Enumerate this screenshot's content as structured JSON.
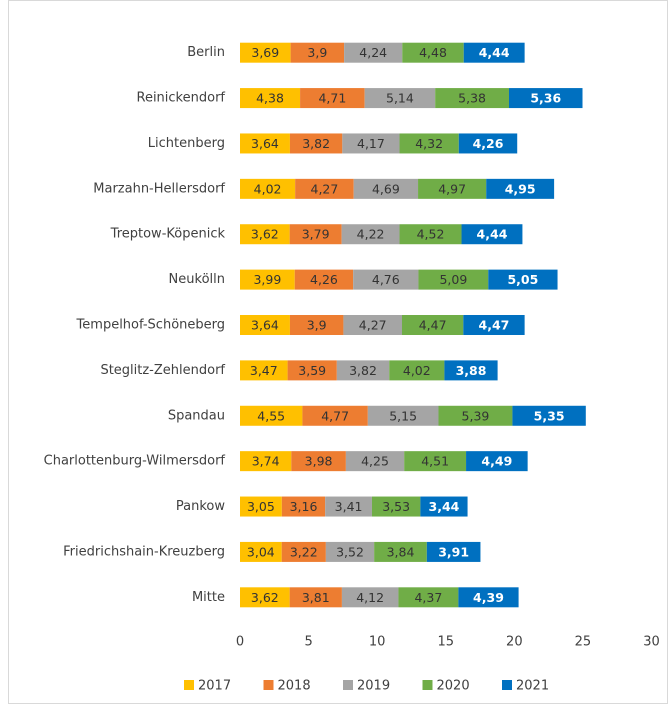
{
  "chart_data": {
    "type": "stacked-barh",
    "categories": [
      "Berlin",
      "Reinickendorf",
      "Lichtenberg",
      "Marzahn-Hellersdorf",
      "Treptow-Köpenick",
      "Neukölln",
      "Tempelhof-Schöneberg",
      "Steglitz-Zehlendorf",
      "Spandau",
      "Charlottenburg-Wilmersdorf",
      "Pankow",
      "Friedrichshain-Kreuzberg",
      "Mitte"
    ],
    "series": [
      {
        "name": "2017",
        "color": "#ffc000",
        "values": [
          3.69,
          4.38,
          3.64,
          4.02,
          3.62,
          3.99,
          3.64,
          3.47,
          4.55,
          3.74,
          3.05,
          3.04,
          3.62
        ],
        "value_labels": [
          "3,69",
          "4,38",
          "3,64",
          "4,02",
          "3,62",
          "3,99",
          "3,64",
          "3,47",
          "4,55",
          "3,74",
          "3,05",
          "3,04",
          "3,62"
        ]
      },
      {
        "name": "2018",
        "color": "#ed7d31",
        "values": [
          3.9,
          4.71,
          3.82,
          4.27,
          3.79,
          4.26,
          3.9,
          3.59,
          4.77,
          3.98,
          3.16,
          3.22,
          3.81
        ],
        "value_labels": [
          "3,9",
          "4,71",
          "3,82",
          "4,27",
          "3,79",
          "4,26",
          "3,9",
          "3,59",
          "4,77",
          "3,98",
          "3,16",
          "3,22",
          "3,81"
        ]
      },
      {
        "name": "2019",
        "color": "#a5a5a5",
        "values": [
          4.24,
          5.14,
          4.17,
          4.69,
          4.22,
          4.76,
          4.27,
          3.82,
          5.15,
          4.25,
          3.41,
          3.52,
          4.12
        ],
        "value_labels": [
          "4,24",
          "5,14",
          "4,17",
          "4,69",
          "4,22",
          "4,76",
          "4,27",
          "3,82",
          "5,15",
          "4,25",
          "3,41",
          "3,52",
          "4,12"
        ]
      },
      {
        "name": "2020",
        "color": "#70ad47",
        "values": [
          4.48,
          5.38,
          4.32,
          4.97,
          4.52,
          5.09,
          4.47,
          4.02,
          5.39,
          4.51,
          3.53,
          3.84,
          4.37
        ],
        "value_labels": [
          "4,48",
          "5,38",
          "4,32",
          "4,97",
          "4,52",
          "5,09",
          "4,47",
          "4,02",
          "5,39",
          "4,51",
          "3,53",
          "3,84",
          "4,37"
        ]
      },
      {
        "name": "2021",
        "color": "#0070c0",
        "values": [
          4.44,
          5.36,
          4.26,
          4.95,
          4.44,
          5.05,
          4.47,
          3.88,
          5.35,
          4.49,
          3.44,
          3.91,
          4.39
        ],
        "value_labels": [
          "4,44",
          "5,36",
          "4,26",
          "4,95",
          "4,44",
          "5,05",
          "4,47",
          "3,88",
          "5,35",
          "4,49",
          "3,44",
          "3,91",
          "4,39"
        ]
      }
    ],
    "xlim": [
      0,
      30
    ],
    "xticks": [
      0,
      5,
      10,
      15,
      20,
      25,
      30
    ],
    "grid": false,
    "legend": "bottom"
  }
}
